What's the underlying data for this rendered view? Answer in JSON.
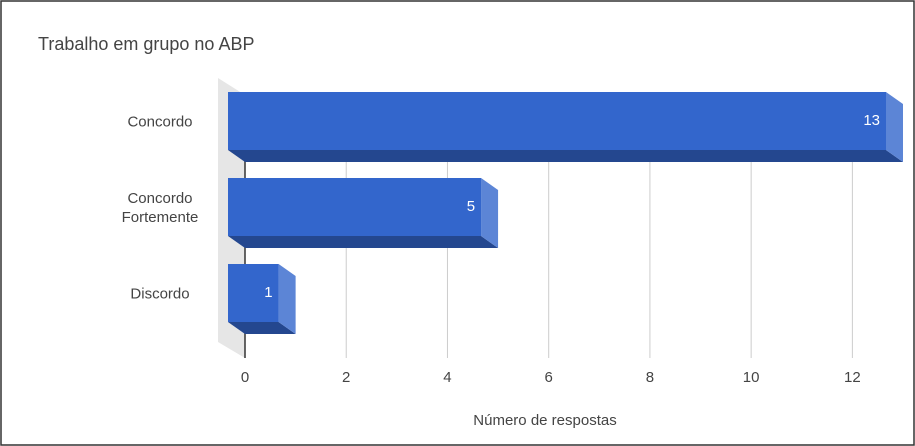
{
  "chart_data": {
    "type": "bar3d",
    "title": "Trabalho em grupo no ABP",
    "categories": [
      "Concordo",
      "Concordo Fortemente",
      "Discordo"
    ],
    "values": [
      13,
      5,
      1
    ],
    "color": "#3366cc",
    "xlabel": "Número de respostas",
    "xlim": [
      0,
      13
    ],
    "xticks": [
      0,
      2,
      4,
      6,
      8,
      10,
      12
    ],
    "grid": true
  }
}
